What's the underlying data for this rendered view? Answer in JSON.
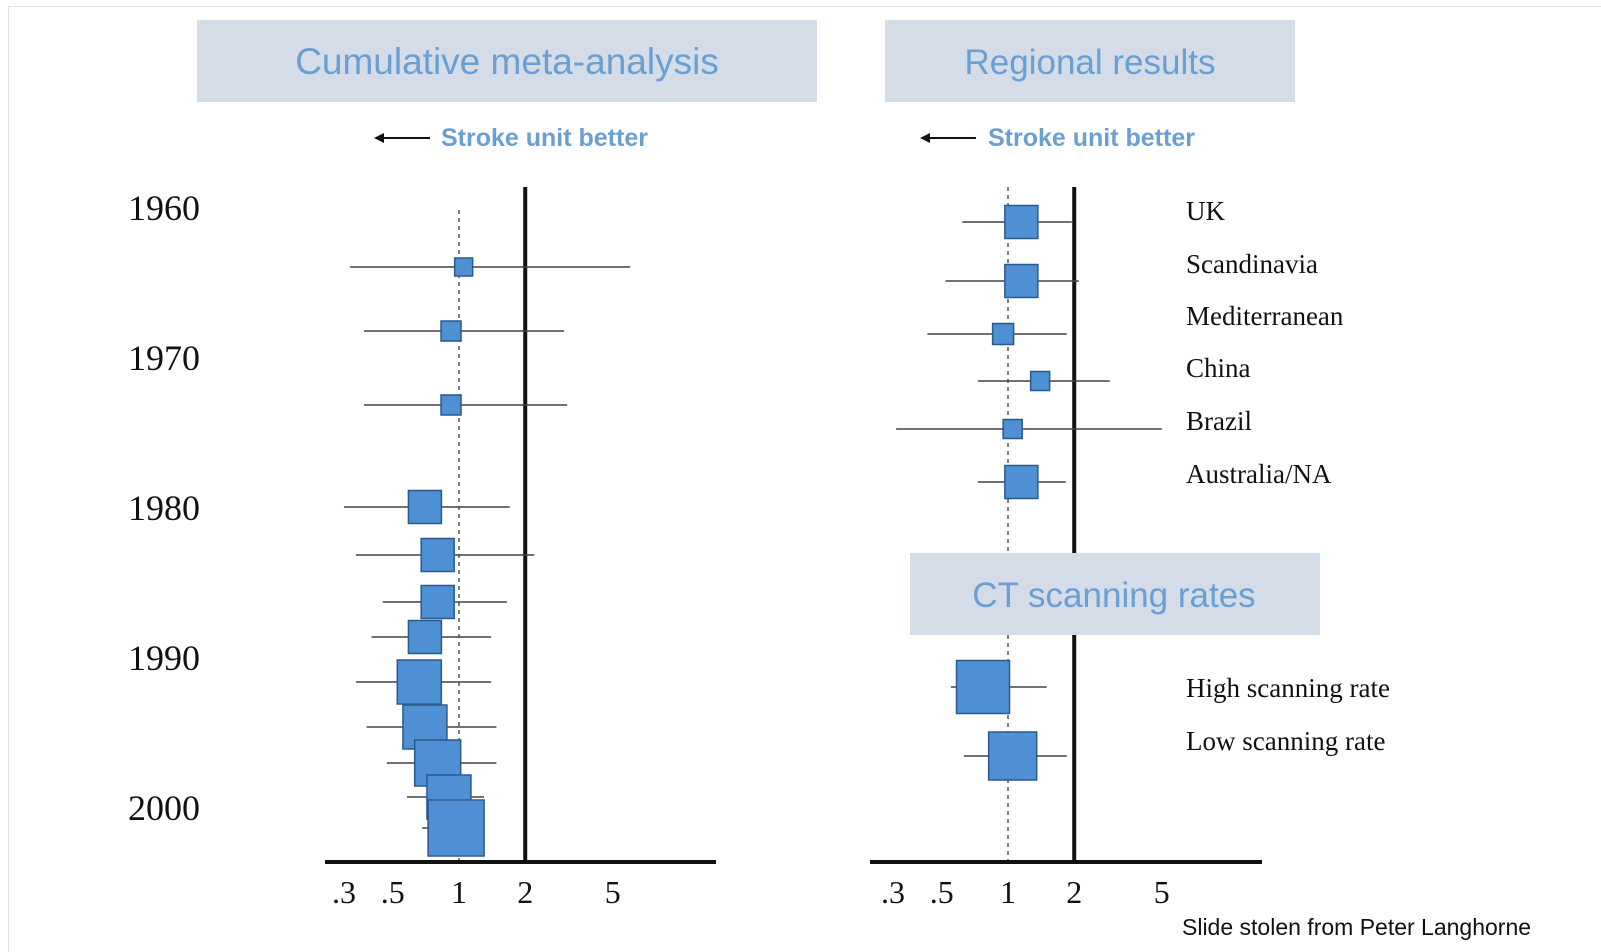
{
  "colors": {
    "header_bg": "#d4dce7",
    "header_text": "#6a9fd3",
    "marker_fill": "#4f90d4",
    "marker_stroke": "#2a5a8c",
    "axis": "#111111",
    "ci_line": "#444444",
    "dotted_line": "#555555",
    "arrow_label": "#6a9fd3"
  },
  "footer_note": "Slide stolen from Peter Langhorne",
  "chart_data": [
    {
      "type": "forest",
      "title": "Cumulative  meta-analysis",
      "direction_label": "Stroke unit better",
      "x_scale": "log",
      "xlim": [
        0.28,
        14
      ],
      "xticks": [
        ".3",
        ".5",
        "1",
        "2",
        "5"
      ],
      "xtick_values": [
        0.3,
        0.5,
        1,
        2,
        5
      ],
      "reference_line": 2,
      "pooled_line": 1,
      "y_labels": [
        "1960",
        "1970",
        "1980",
        "1990",
        "2000"
      ],
      "rows": [
        {
          "estimate": 1.05,
          "lower": 0.32,
          "upper": 6.0,
          "weight": 1.0
        },
        {
          "estimate": 0.92,
          "lower": 0.37,
          "upper": 3.0,
          "weight": 1.2
        },
        {
          "estimate": 0.92,
          "lower": 0.37,
          "upper": 3.1,
          "weight": 1.2
        },
        {
          "estimate": 0.7,
          "lower": 0.3,
          "upper": 1.7,
          "weight": 2.5
        },
        {
          "estimate": 0.8,
          "lower": 0.34,
          "upper": 2.2,
          "weight": 2.5
        },
        {
          "estimate": 0.8,
          "lower": 0.45,
          "upper": 1.65,
          "weight": 2.5
        },
        {
          "estimate": 0.7,
          "lower": 0.4,
          "upper": 1.4,
          "weight": 2.5
        },
        {
          "estimate": 0.66,
          "lower": 0.34,
          "upper": 1.4,
          "weight": 3.6
        },
        {
          "estimate": 0.7,
          "lower": 0.38,
          "upper": 1.48,
          "weight": 3.6
        },
        {
          "estimate": 0.8,
          "lower": 0.47,
          "upper": 1.48,
          "weight": 3.8
        },
        {
          "estimate": 0.9,
          "lower": 0.58,
          "upper": 1.3,
          "weight": 3.6
        },
        {
          "estimate": 0.97,
          "lower": 0.68,
          "upper": 1.28,
          "weight": 4.8
        }
      ]
    },
    {
      "type": "forest",
      "title": "Regional results",
      "direction_label": "Stroke unit better",
      "x_scale": "log",
      "xlim": [
        0.28,
        14
      ],
      "xticks": [
        ".3",
        ".5",
        "1",
        "2",
        "5"
      ],
      "xtick_values": [
        0.3,
        0.5,
        1,
        2,
        5
      ],
      "reference_line": 2,
      "pooled_line": 1,
      "rows": [
        {
          "label": "UK",
          "estimate": 1.15,
          "lower": 0.62,
          "upper": 1.95,
          "weight": 2.5
        },
        {
          "label": "Scandinavia",
          "estimate": 1.15,
          "lower": 0.52,
          "upper": 2.1,
          "weight": 2.5
        },
        {
          "label": "Mediterranean",
          "estimate": 0.95,
          "lower": 0.43,
          "upper": 1.85,
          "weight": 1.3
        },
        {
          "label": "China",
          "estimate": 1.4,
          "lower": 0.73,
          "upper": 2.9,
          "weight": 1.1
        },
        {
          "label": "Brazil",
          "estimate": 1.05,
          "lower": 0.31,
          "upper": 5.0,
          "weight": 1.1
        },
        {
          "label": "Australia/NA",
          "estimate": 1.15,
          "lower": 0.73,
          "upper": 1.83,
          "weight": 2.5
        }
      ],
      "subsection": {
        "title": "CT scanning rates",
        "rows": [
          {
            "label": "High  scanning rate",
            "estimate": 0.77,
            "lower": 0.55,
            "upper": 1.5,
            "weight": 4.5
          },
          {
            "label": "Low  scanning rate",
            "estimate": 1.05,
            "lower": 0.63,
            "upper": 1.85,
            "weight": 4.0
          }
        ]
      }
    }
  ]
}
